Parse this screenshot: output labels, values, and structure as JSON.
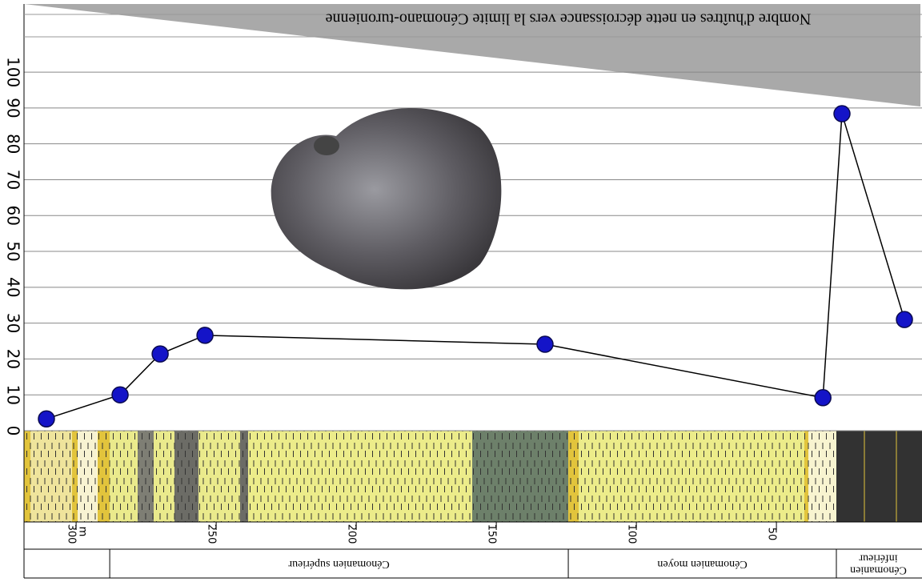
{
  "chart_data": {
    "type": "line",
    "annotation": "Nombre d'huîtres en nette décroissance vers la limite Cénomano-turonienne",
    "x": [
      310.6,
      284.3,
      270,
      254,
      132.6,
      33.4,
      26.6,
      4.3
    ],
    "values": [
      3.3,
      10,
      21.4,
      26.6,
      24.1,
      9.2,
      88.4,
      31
    ],
    "line_color": "#000000",
    "marker_color": "#1414c8",
    "xlim": [
      318.6,
      -1.4
    ],
    "xticks": [
      300,
      250,
      200,
      150,
      100,
      50
    ],
    "x_unit": "m",
    "ylim": [
      0,
      119
    ],
    "yticks": [
      0,
      10,
      20,
      30,
      40,
      50,
      60,
      70,
      80,
      90,
      100
    ],
    "grid": true,
    "stages": [
      {
        "label": "Cénomanien supérieur",
        "from": 288,
        "to": 124.3
      },
      {
        "label": "Cénomanien moyen",
        "from": 124.3,
        "to": 28.6
      },
      {
        "label": "Cénomanien inférieur",
        "from": 28.6,
        "to": -1.4
      }
    ]
  }
}
